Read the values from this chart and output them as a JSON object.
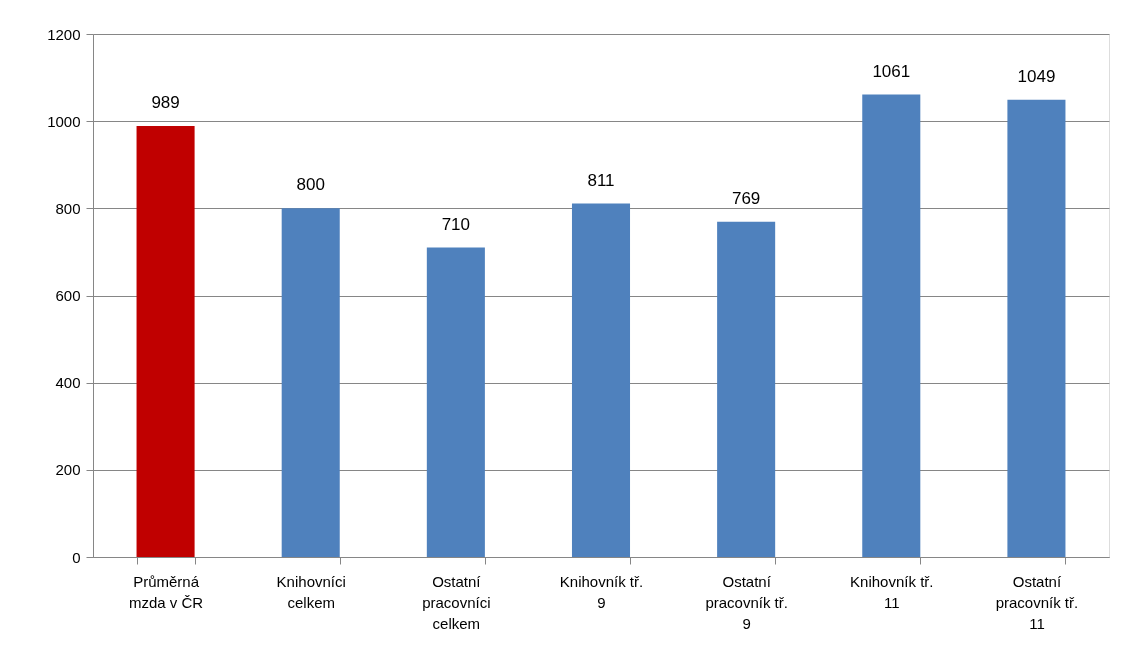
{
  "chart_data": {
    "type": "bar",
    "categories": [
      "Průměrná mzda v ČR",
      "Knihovníci celkem",
      "Ostatní pracovníci celkem",
      "Knihovník tř. 9",
      "Ostatní pracovník tř. 9",
      "Knihovník tř. 11",
      "Ostatní pracovník tř. 11"
    ],
    "values": [
      989,
      800,
      710,
      811,
      769,
      1061,
      1049
    ],
    "colors": [
      "#c00000",
      "#4f81bd",
      "#4f81bd",
      "#4f81bd",
      "#4f81bd",
      "#4f81bd",
      "#4f81bd"
    ],
    "ylim": [
      0,
      1200
    ],
    "yticks": [
      0,
      200,
      400,
      600,
      800,
      1000,
      1200
    ],
    "grid": "y",
    "data_labels": true
  }
}
